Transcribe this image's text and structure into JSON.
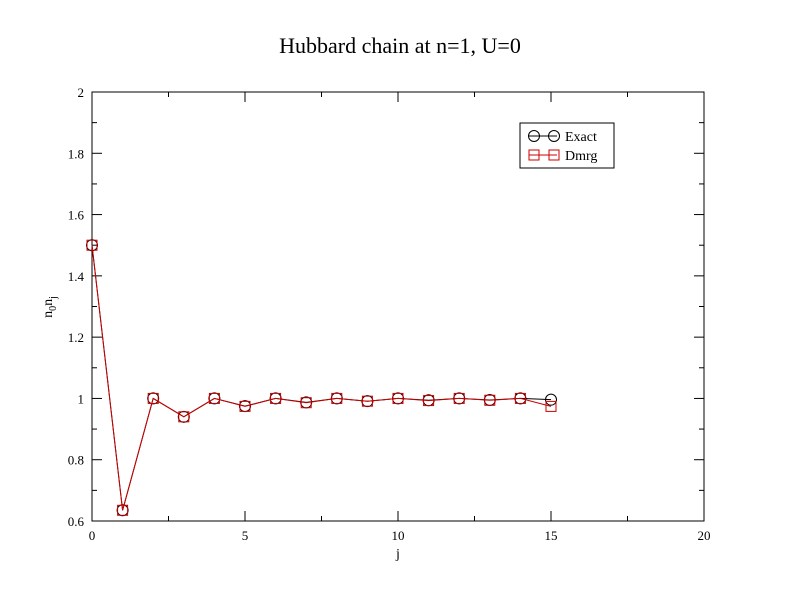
{
  "chart_data": {
    "type": "line",
    "title": "Hubbard chain at n=1, U=0",
    "xlabel": "j",
    "ylabel_main": "n",
    "ylabel_sub1": "0",
    "ylabel_mid": "n",
    "ylabel_sub2": "j",
    "xlim": [
      0,
      20
    ],
    "ylim": [
      0.6,
      2
    ],
    "xticks": [
      0,
      5,
      10,
      15,
      20
    ],
    "yticks": [
      0.6,
      0.8,
      1,
      1.2,
      1.4,
      1.6,
      1.8,
      2
    ],
    "ytick_labels": [
      "0.6",
      "0.8",
      "1",
      "1.2",
      "1.4",
      "1.6",
      "1.8",
      "2"
    ],
    "xtick_labels": [
      "0",
      "5",
      "10",
      "15",
      "20"
    ],
    "legend_position": "top-right",
    "grid": false,
    "series": [
      {
        "name": "Exact",
        "color": "#000000",
        "marker": "circle",
        "x": [
          0,
          1,
          2,
          3,
          4,
          5,
          6,
          7,
          8,
          9,
          10,
          11,
          12,
          13,
          14,
          15
        ],
        "y": [
          1.5,
          0.635,
          1.0,
          0.94,
          1.0,
          0.975,
          1.0,
          0.987,
          1.0,
          0.991,
          1.0,
          0.994,
          1.0,
          0.995,
          1.0,
          0.996
        ]
      },
      {
        "name": "Dmrg",
        "color": "#cc0000",
        "marker": "square",
        "x": [
          0,
          1,
          2,
          3,
          4,
          5,
          6,
          7,
          8,
          9,
          10,
          11,
          12,
          13,
          14,
          15
        ],
        "y": [
          1.5,
          0.635,
          1.0,
          0.94,
          1.0,
          0.974,
          1.0,
          0.986,
          1.0,
          0.991,
          1.0,
          0.993,
          1.0,
          0.994,
          1.0,
          0.974
        ]
      }
    ]
  }
}
